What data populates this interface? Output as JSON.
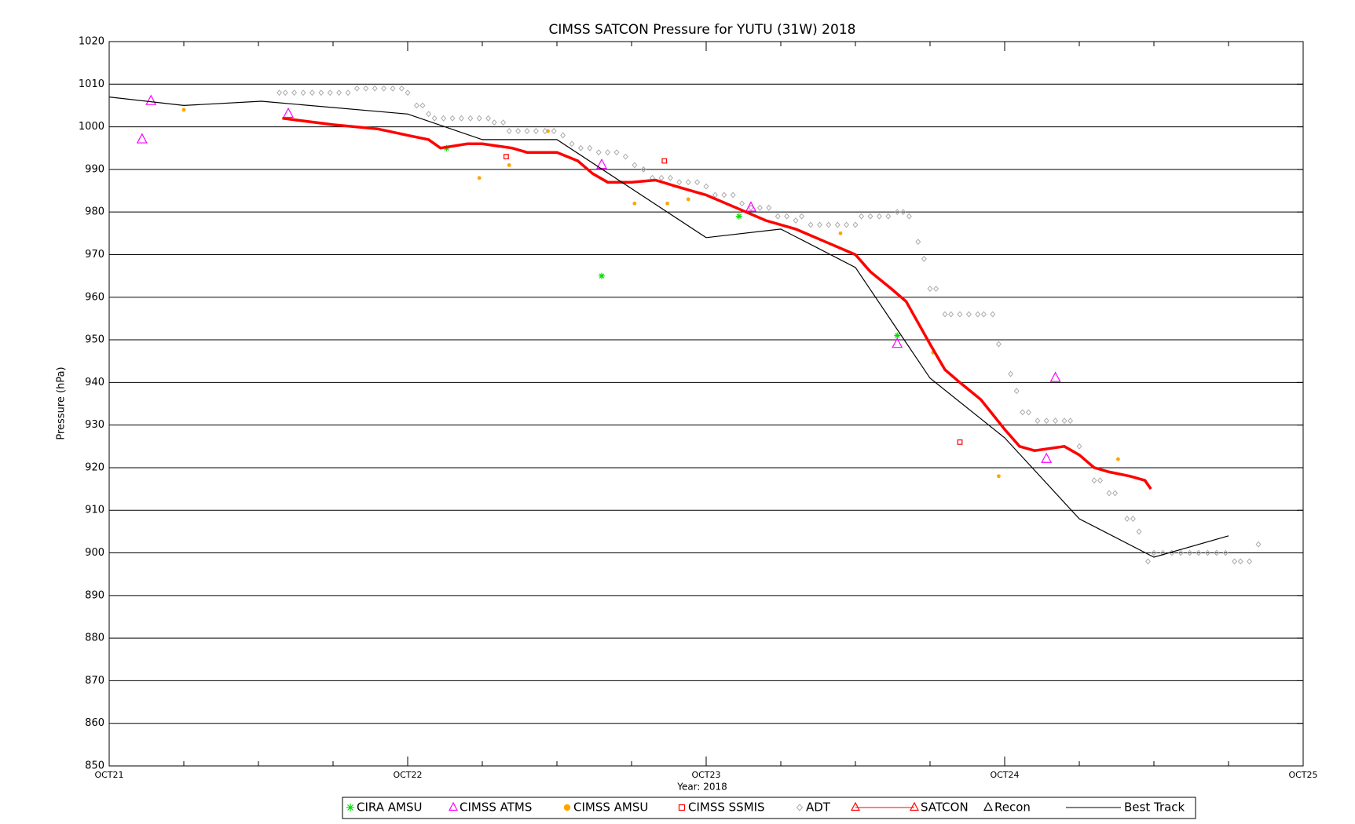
{
  "chart_data": {
    "type": "scatter",
    "title": "CIMSS SATCON Pressure for YUTU (31W) 2018",
    "x_label": "Year: 2018",
    "y_label": "Pressure (hPa)",
    "xlim": [
      21,
      25
    ],
    "xticks": [
      {
        "value": 21,
        "label": "OCT21"
      },
      {
        "value": 22,
        "label": "OCT22"
      },
      {
        "value": 23,
        "label": "OCT23"
      },
      {
        "value": 24,
        "label": "OCT24"
      },
      {
        "value": 25,
        "label": "OCT25"
      }
    ],
    "ylim": [
      850,
      1020
    ],
    "yticks": [
      850,
      860,
      870,
      880,
      890,
      900,
      910,
      920,
      930,
      940,
      950,
      960,
      970,
      980,
      990,
      1000,
      1010,
      1020
    ],
    "grid": true,
    "legend": "bottom",
    "series": [
      {
        "name": "CIRA AMSU",
        "color": "#00e000",
        "marker": "asterisk",
        "x": [
          22.13,
          22.65,
          23.11,
          23.64
        ],
        "values": [
          995,
          965,
          979,
          951
        ]
      },
      {
        "name": "CIMSS ATMS",
        "color": "#ff00ff",
        "marker": "triangle",
        "x": [
          21.11,
          21.14,
          21.6,
          22.65,
          23.15,
          23.64,
          24.17,
          24.14
        ],
        "values": [
          997,
          1006,
          1003,
          991,
          981,
          949,
          941,
          922
        ]
      },
      {
        "name": "CIMSS AMSU",
        "color": "#ffa500",
        "marker": "dot",
        "x": [
          21.25,
          22.24,
          22.34,
          22.47,
          22.76,
          22.87,
          22.94,
          23.45,
          23.76,
          23.98,
          24.38
        ],
        "values": [
          1004,
          988,
          991,
          999,
          982,
          982,
          983,
          975,
          947,
          918,
          922
        ]
      },
      {
        "name": "CIMSS SSMIS",
        "color": "#ff0000",
        "marker": "square",
        "x": [
          22.33,
          22.86,
          23.85
        ],
        "values": [
          993,
          992,
          926
        ]
      },
      {
        "name": "ADT",
        "color": "#aaaaaa",
        "marker": "diamond",
        "x": [
          21.57,
          21.59,
          21.62,
          21.65,
          21.68,
          21.71,
          21.74,
          21.77,
          21.8,
          21.83,
          21.86,
          21.89,
          21.92,
          21.95,
          21.98,
          22.0,
          22.03,
          22.05,
          22.07,
          22.09,
          22.12,
          22.15,
          22.18,
          22.21,
          22.24,
          22.27,
          22.29,
          22.32,
          22.34,
          22.37,
          22.4,
          22.43,
          22.46,
          22.49,
          22.52,
          22.55,
          22.58,
          22.61,
          22.64,
          22.67,
          22.7,
          22.73,
          22.76,
          22.79,
          22.82,
          22.85,
          22.88,
          22.91,
          22.94,
          22.97,
          23.0,
          23.03,
          23.06,
          23.09,
          23.12,
          23.15,
          23.18,
          23.21,
          23.24,
          23.27,
          23.3,
          23.32,
          23.35,
          23.38,
          23.41,
          23.44,
          23.47,
          23.5,
          23.52,
          23.55,
          23.58,
          23.61,
          23.64,
          23.66,
          23.68,
          23.71,
          23.73,
          23.75,
          23.77,
          23.8,
          23.82,
          23.85,
          23.88,
          23.91,
          23.93,
          23.96,
          23.98,
          24.02,
          24.04,
          24.06,
          24.08,
          24.11,
          24.14,
          24.17,
          24.2,
          24.22,
          24.25,
          24.3,
          24.32,
          24.35,
          24.37,
          24.41,
          24.43,
          24.45,
          24.48,
          24.5,
          24.53,
          24.56,
          24.59,
          24.62,
          24.65,
          24.68,
          24.71,
          24.74,
          24.77,
          24.79,
          24.82,
          24.85
        ],
        "values": [
          1008,
          1008,
          1008,
          1008,
          1008,
          1008,
          1008,
          1008,
          1008,
          1009,
          1009,
          1009,
          1009,
          1009,
          1009,
          1008,
          1005,
          1005,
          1003,
          1002,
          1002,
          1002,
          1002,
          1002,
          1002,
          1002,
          1001,
          1001,
          999,
          999,
          999,
          999,
          999,
          999,
          998,
          996,
          995,
          995,
          994,
          994,
          994,
          993,
          991,
          990,
          988,
          988,
          988,
          987,
          987,
          987,
          986,
          984,
          984,
          984,
          982,
          981,
          981,
          981,
          979,
          979,
          978,
          979,
          977,
          977,
          977,
          977,
          977,
          977,
          979,
          979,
          979,
          979,
          980,
          980,
          979,
          973,
          969,
          962,
          962,
          956,
          956,
          956,
          956,
          956,
          956,
          956,
          949,
          942,
          938,
          933,
          933,
          931,
          931,
          931,
          931,
          931,
          925,
          917,
          917,
          914,
          914,
          908,
          908,
          905,
          898,
          900,
          900,
          900,
          900,
          900,
          900,
          900,
          900,
          900,
          898,
          898,
          898,
          902
        ]
      },
      {
        "name": "SATCON",
        "color": "#ff0000",
        "marker": "line-triangle",
        "x": [
          21.58,
          21.75,
          21.9,
          22.0,
          22.07,
          22.11,
          22.2,
          22.25,
          22.35,
          22.4,
          22.5,
          22.57,
          22.62,
          22.67,
          22.75,
          22.83,
          22.9,
          23.0,
          23.1,
          23.2,
          23.3,
          23.4,
          23.5,
          23.55,
          23.62,
          23.67,
          23.75,
          23.8,
          23.85,
          23.92,
          24.0,
          24.05,
          24.1,
          24.2,
          24.25,
          24.3,
          24.35,
          24.42,
          24.47,
          24.49
        ],
        "values": [
          1002,
          1000.5,
          999.5,
          998,
          997,
          995,
          996,
          996,
          995,
          994,
          994,
          992,
          989,
          987,
          987,
          987.5,
          986,
          984,
          981,
          978,
          976,
          973,
          970,
          966,
          962,
          959,
          949,
          943,
          940,
          936,
          929,
          925,
          924,
          925,
          923,
          920,
          919,
          918,
          917,
          915
        ]
      },
      {
        "name": "Recon",
        "color": "#000000",
        "marker": "triangle",
        "x": [],
        "values": []
      },
      {
        "name": "Best Track",
        "color": "#000000",
        "marker": "line",
        "x": [
          21.0,
          21.25,
          21.51,
          22.0,
          22.25,
          22.5,
          23.0,
          23.25,
          23.5,
          23.75,
          24.0,
          24.25,
          24.5,
          24.75
        ],
        "values": [
          1007,
          1005,
          1006,
          1003,
          997,
          997,
          974,
          976,
          967,
          941,
          927,
          908,
          899,
          904
        ]
      }
    ]
  }
}
